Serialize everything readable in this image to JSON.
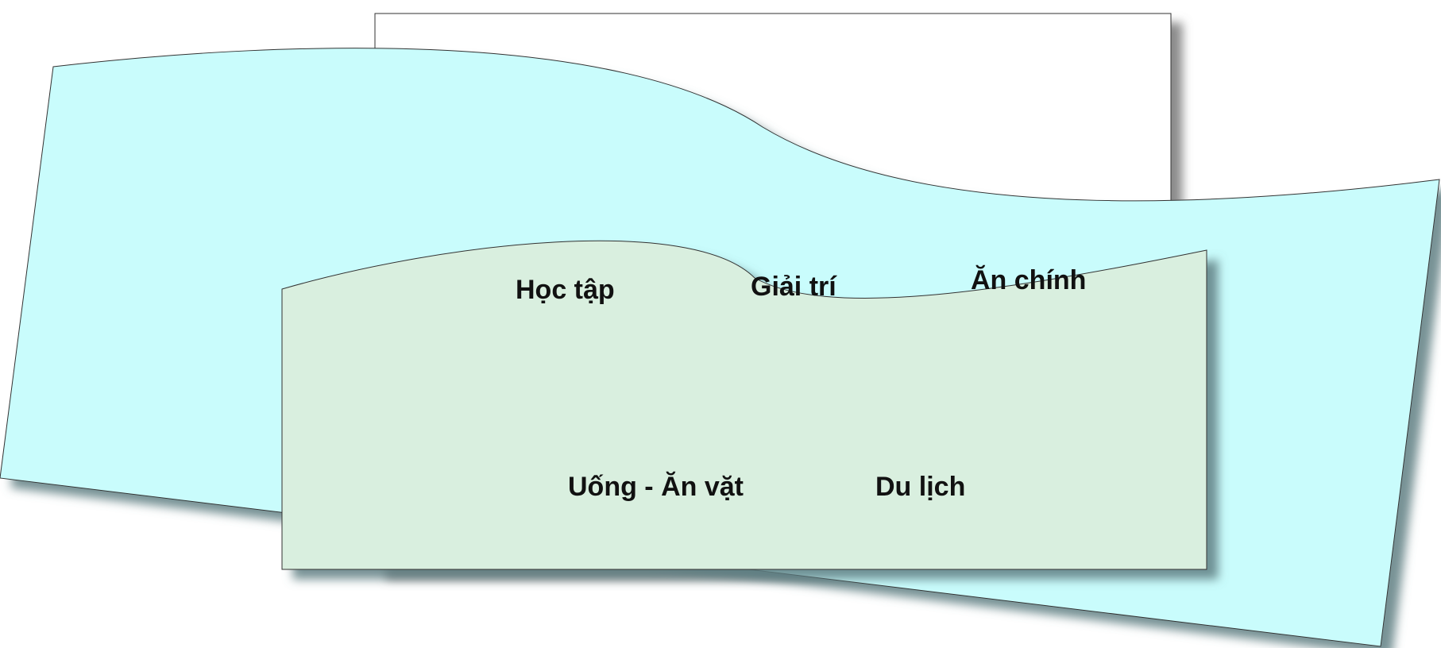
{
  "categories": {
    "hoc_tap": "Học tập",
    "giai_tri": "Giải trí",
    "an_chinh": "Ăn chính",
    "uong_an_vat": "Uống - Ăn vặt",
    "du_lich": "Du lịch"
  },
  "colors": {
    "back_shape_fill": "#ffffff",
    "wave_shape_fill": "#c9fcfc",
    "front_shape_fill": "#d9efdf",
    "outline": "#333333",
    "shadow": "#5e7f83"
  }
}
